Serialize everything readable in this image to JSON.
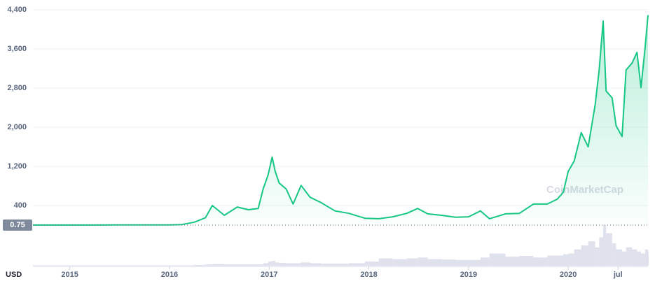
{
  "chart_data": {
    "type": "line",
    "currency_label": "USD",
    "watermark": "CoinMarketCap",
    "current_price": 0.75,
    "x": [
      2014.63,
      2015.0,
      2015.5,
      2016.0,
      2016.12,
      2016.25,
      2016.36,
      2016.43,
      2016.55,
      2016.68,
      2016.79,
      2016.89,
      2016.94,
      2016.99,
      2017.03,
      2017.06,
      2017.1,
      2017.17,
      2017.24,
      2017.32,
      2017.41,
      2017.52,
      2017.66,
      2017.8,
      2017.96,
      2018.1,
      2018.24,
      2018.38,
      2018.49,
      2018.59,
      2018.73,
      2018.87,
      2019.0,
      2019.12,
      2019.21,
      2019.37,
      2019.51,
      2019.65,
      2019.79,
      2019.89,
      2019.95,
      2020.0,
      2020.06,
      2020.13,
      2020.2,
      2020.27,
      2020.31,
      2020.35,
      2020.38,
      2020.44,
      2020.48,
      2020.54,
      2020.58,
      2020.64,
      2020.69,
      2020.73,
      2020.77,
      2020.8
    ],
    "series": [
      {
        "color": "#16c784",
        "values": [
          2,
          2,
          3,
          4,
          10,
          60,
          150,
          400,
          200,
          370,
          314,
          340,
          740,
          1030,
          1390,
          1100,
          860,
          740,
          430,
          810,
          570,
          460,
          290,
          240,
          140,
          130,
          170,
          240,
          340,
          230,
          200,
          160,
          170,
          290,
          130,
          230,
          240,
          430,
          430,
          530,
          670,
          1100,
          1310,
          1890,
          1600,
          2460,
          3170,
          4170,
          2740,
          2600,
          2030,
          1810,
          3170,
          3310,
          3530,
          2810,
          3600,
          4290
        ]
      },
      {
        "color": "#c9cde0",
        "axis": "y2",
        "values": [
          1,
          1,
          1,
          1,
          1,
          2,
          3,
          4,
          3,
          3,
          3,
          3,
          6,
          10,
          12,
          8,
          7,
          6,
          6,
          8,
          6,
          5,
          5,
          6,
          10,
          18,
          16,
          18,
          20,
          16,
          15,
          14,
          14,
          20,
          30,
          22,
          24,
          20,
          25,
          25,
          28,
          30,
          40,
          50,
          60,
          45,
          70,
          100,
          80,
          55,
          40,
          35,
          45,
          40,
          35,
          30,
          40,
          35
        ]
      }
    ],
    "xlim": [
      2014.63,
      2020.8
    ],
    "xticks": [
      2015,
      2016,
      2017,
      2018,
      2019,
      2020,
      {
        "value": 2020.5,
        "label": "jul"
      }
    ],
    "ylim": [
      0,
      4400
    ],
    "yticks": [
      400,
      {
        "value": 1200,
        "label": "1,200"
      },
      {
        "value": 2000,
        "label": "2,000"
      },
      {
        "value": 2800,
        "label": "2,800"
      },
      {
        "value": 3600,
        "label": "3,600"
      },
      {
        "value": 4400,
        "label": "4,400"
      }
    ],
    "y2lim": [
      0,
      100
    ],
    "grid": true
  }
}
